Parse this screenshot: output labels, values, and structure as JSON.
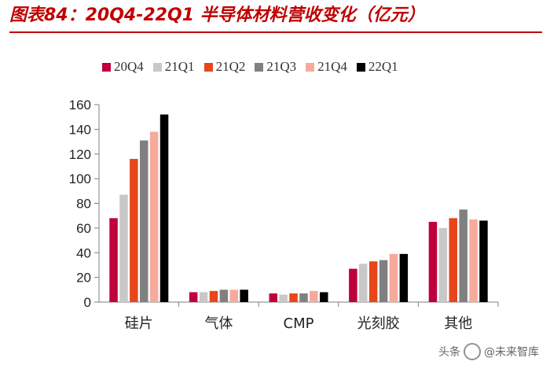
{
  "title": "图表84：20Q4-22Q1 半导体材料营收变化（亿元）",
  "watermark": {
    "prefix": "头条",
    "handle": "@未来智库"
  },
  "colors": {
    "title": "#c00000",
    "axis": "#7f7f7f"
  },
  "chart_data": {
    "type": "bar",
    "title": "20Q4-22Q1 半导体材料营收变化（亿元）",
    "categories": [
      "硅片",
      "气体",
      "CMP",
      "光刻胶",
      "其他"
    ],
    "series": [
      {
        "name": "20Q4",
        "color": "#c0003c",
        "values": [
          68,
          8,
          7,
          27,
          65
        ]
      },
      {
        "name": "21Q1",
        "color": "#c8c8c8",
        "values": [
          87,
          8,
          6,
          31,
          60
        ]
      },
      {
        "name": "21Q2",
        "color": "#e8461a",
        "values": [
          116,
          9,
          7,
          33,
          68
        ]
      },
      {
        "name": "21Q3",
        "color": "#808080",
        "values": [
          131,
          10,
          7,
          34,
          75
        ]
      },
      {
        "name": "21Q4",
        "color": "#f7aa9c",
        "values": [
          138,
          10,
          9,
          39,
          67
        ]
      },
      {
        "name": "22Q1",
        "color": "#000000",
        "values": [
          152,
          10,
          8,
          39,
          66
        ]
      }
    ],
    "yticks": [
      0,
      20,
      40,
      60,
      80,
      100,
      120,
      140,
      160
    ],
    "ylim": [
      0,
      160
    ],
    "xlabel": "",
    "ylabel": "",
    "legend_position": "top",
    "grid": false
  }
}
